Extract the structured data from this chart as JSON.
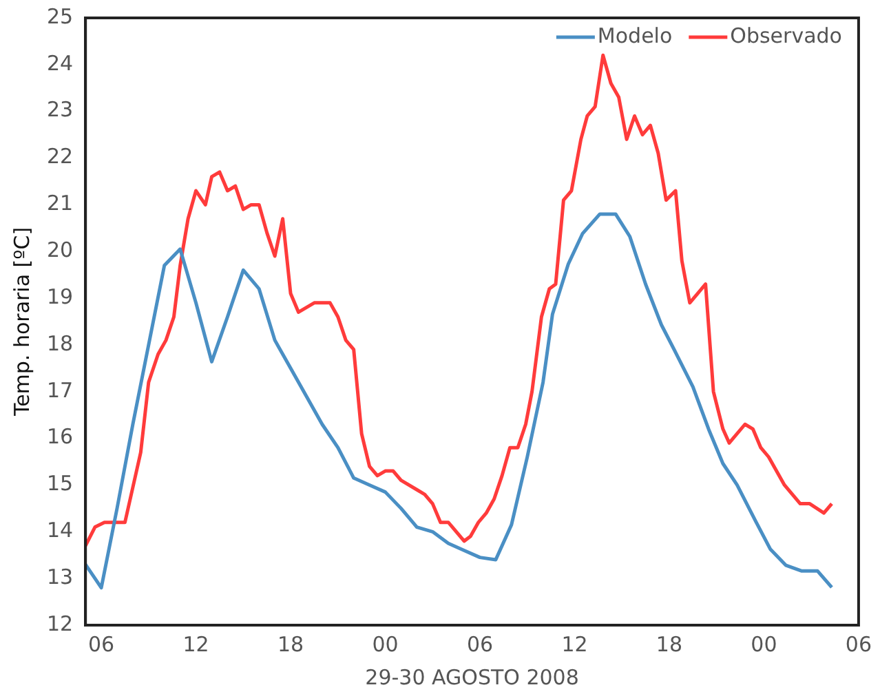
{
  "chart_data": {
    "type": "line",
    "xlabel": "29-30 AGOSTO 2008",
    "ylabel": "Temp. horaria [ºC]",
    "xlim": [
      5,
      54
    ],
    "ylim": [
      12,
      25
    ],
    "xticks": [
      {
        "value": 6,
        "label": "06"
      },
      {
        "value": 12,
        "label": "12"
      },
      {
        "value": 18,
        "label": "18"
      },
      {
        "value": 24,
        "label": "00"
      },
      {
        "value": 30,
        "label": "06"
      },
      {
        "value": 36,
        "label": "12"
      },
      {
        "value": 42,
        "label": "18"
      },
      {
        "value": 48,
        "label": "00"
      },
      {
        "value": 54,
        "label": "06"
      }
    ],
    "yticks": [
      12,
      13,
      14,
      15,
      16,
      17,
      18,
      19,
      20,
      21,
      22,
      23,
      24,
      25
    ],
    "grid": false,
    "legend": "top right",
    "marker": "none",
    "line_style": "solid",
    "series": [
      {
        "name": "Modelo",
        "color": "#4a8fc4",
        "x": [
          5,
          6,
          7,
          8,
          9,
          10,
          11,
          12,
          13,
          14,
          15,
          16,
          17,
          18,
          19,
          20,
          21,
          22,
          23,
          24,
          25,
          26,
          27,
          28,
          29,
          30,
          31,
          32,
          33,
          34,
          34.6,
          35.6,
          36.5,
          37.6,
          38.6,
          39.5,
          40.5,
          41.5,
          42.4,
          43.5,
          44.5,
          45.4,
          46.3,
          47.5,
          48.4,
          49.4,
          50.4,
          51.4,
          52.3
        ],
        "values": [
          13.3,
          12.8,
          14.5,
          16.3,
          18.0,
          19.7,
          20.05,
          18.9,
          17.64,
          18.6,
          19.6,
          19.2,
          18.1,
          17.5,
          16.9,
          16.3,
          15.8,
          15.15,
          15.0,
          14.85,
          14.5,
          14.1,
          14.0,
          13.75,
          13.6,
          13.45,
          13.4,
          14.15,
          15.6,
          17.2,
          18.66,
          19.73,
          20.38,
          20.8,
          20.8,
          20.32,
          19.3,
          18.43,
          17.84,
          17.1,
          16.19,
          15.46,
          15.0,
          14.21,
          13.63,
          13.28,
          13.16,
          13.16,
          12.81
        ]
      },
      {
        "name": "Observado",
        "color": "#ff3b3b",
        "x": [
          5,
          5.6,
          6.2,
          7.5,
          8.5,
          9,
          9.6,
          10.1,
          10.6,
          11,
          11.5,
          12,
          12.6,
          13,
          13.5,
          14,
          14.5,
          15,
          15.5,
          16,
          16.5,
          17,
          17.5,
          18,
          18.5,
          19.5,
          20.5,
          21,
          21.5,
          22,
          22.5,
          23,
          23.5,
          24,
          24.5,
          25,
          26,
          26.5,
          27,
          27.5,
          28,
          29,
          29.4,
          29.9,
          30.4,
          30.9,
          31.4,
          31.9,
          32.4,
          32.9,
          33.3,
          33.9,
          34.4,
          34.8,
          35.3,
          35.8,
          36.4,
          36.8,
          37.3,
          37.8,
          38.3,
          38.8,
          39.3,
          39.8,
          40.3,
          40.8,
          41.3,
          41.8,
          42.4,
          42.8,
          43.3,
          44.3,
          44.8,
          45.4,
          45.8,
          46.8,
          47.3,
          47.8,
          48.3,
          49.3,
          50.3,
          50.9,
          51.8,
          52.3
        ],
        "values": [
          13.7,
          14.1,
          14.2,
          14.2,
          15.7,
          17.2,
          17.8,
          18.1,
          18.6,
          19.7,
          20.7,
          21.3,
          21.0,
          21.6,
          21.7,
          21.3,
          21.4,
          20.9,
          21.0,
          21.0,
          20.4,
          19.9,
          20.7,
          19.1,
          18.7,
          18.9,
          18.9,
          18.6,
          18.1,
          17.9,
          16.1,
          15.4,
          15.2,
          15.3,
          15.3,
          15.1,
          14.9,
          14.8,
          14.6,
          14.2,
          14.2,
          13.8,
          13.9,
          14.2,
          14.4,
          14.7,
          15.2,
          15.8,
          15.8,
          16.3,
          17.0,
          18.6,
          19.2,
          19.3,
          21.1,
          21.3,
          22.4,
          22.9,
          23.1,
          24.2,
          23.6,
          23.3,
          22.4,
          22.9,
          22.5,
          22.7,
          22.1,
          21.1,
          21.3,
          19.8,
          18.9,
          19.3,
          17.0,
          16.2,
          15.9,
          16.3,
          16.2,
          15.8,
          15.6,
          15.0,
          14.6,
          14.6,
          14.4,
          14.6
        ]
      }
    ]
  }
}
